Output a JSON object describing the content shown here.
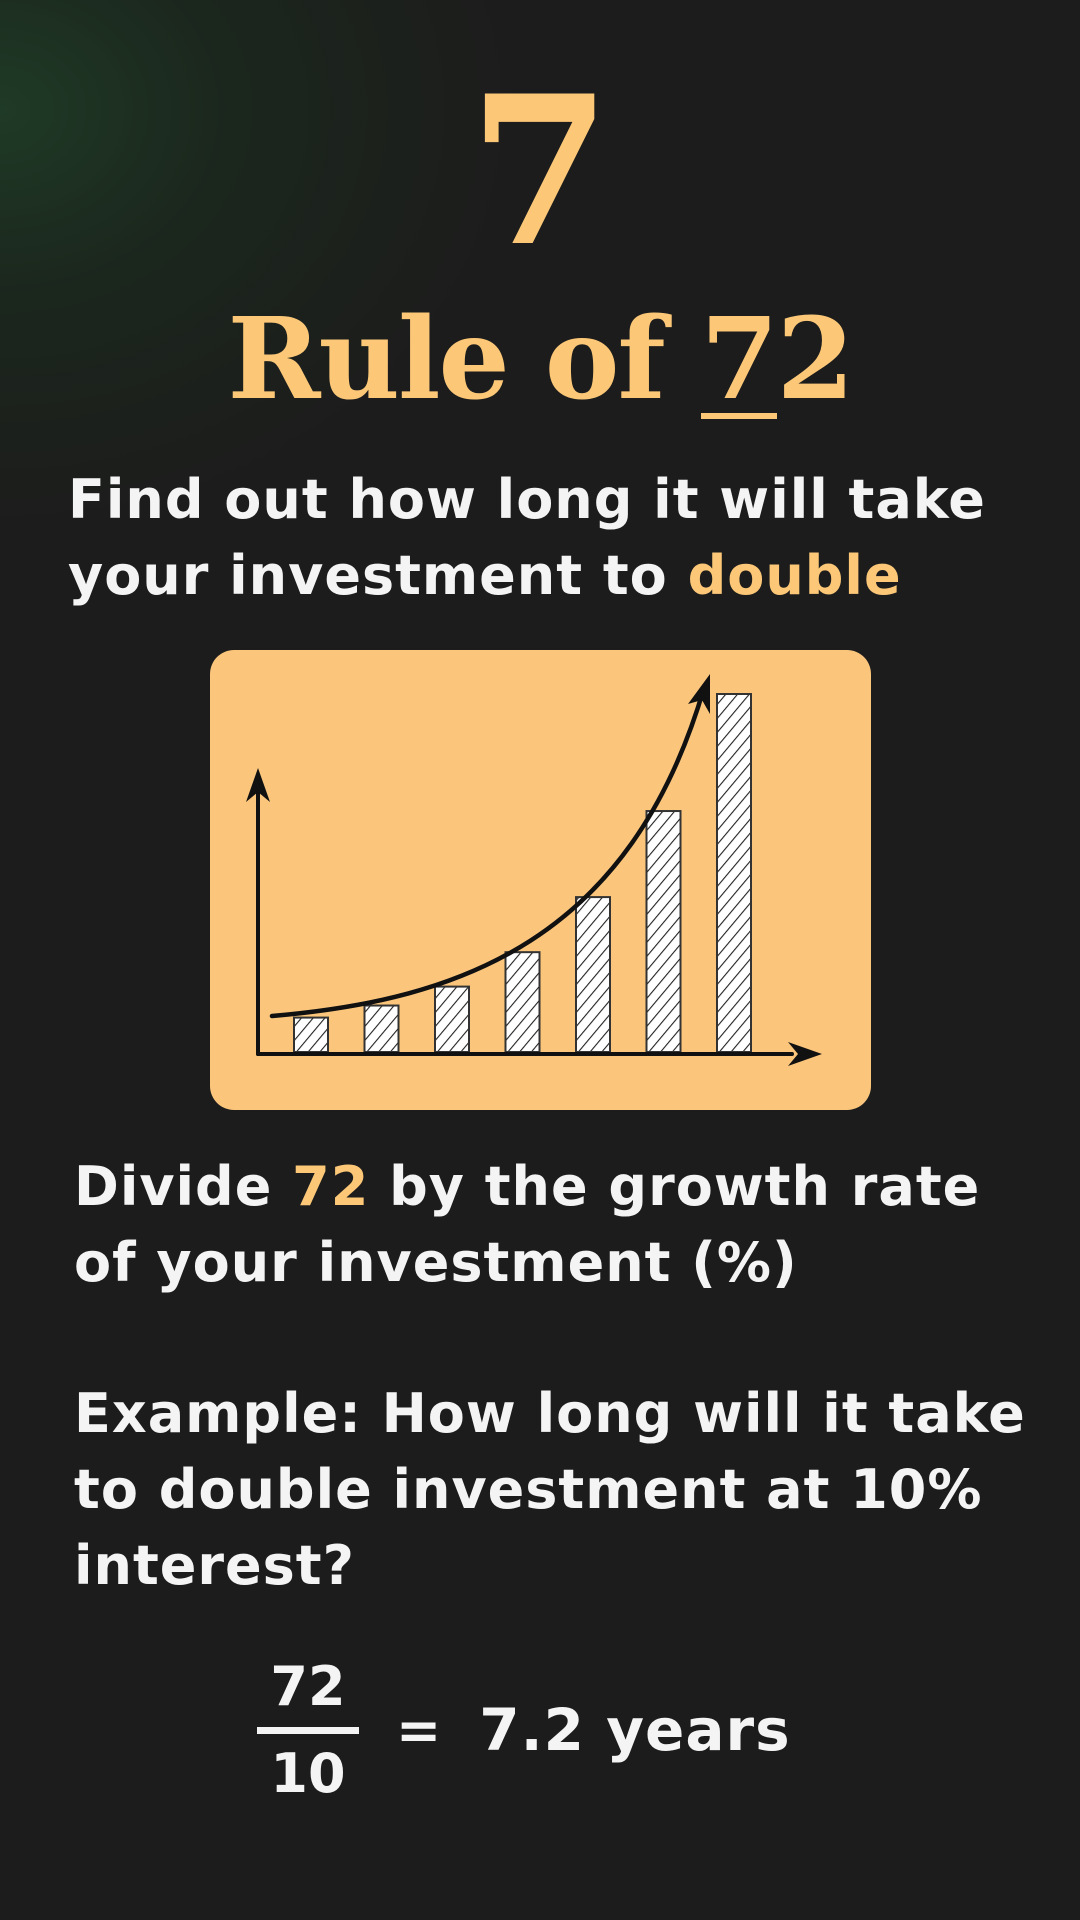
{
  "header": {
    "number": "7",
    "title_prefix": "Rule of ",
    "title_underlined": "7",
    "title_suffix": "2"
  },
  "subtitle": {
    "text": "Find out how long it will take your investment to ",
    "highlight": "double"
  },
  "illustration": {
    "card_color": "#fbc67c",
    "bar_growth_levels": [
      1,
      1.35,
      1.9,
      2.9,
      4.5,
      7,
      10.4
    ]
  },
  "instruction": {
    "before": "Divide ",
    "highlight": "72",
    "after": " by the growth rate of your investment (%)"
  },
  "example": {
    "text": "Example: How long will it take to double investment at 10% interest?"
  },
  "formula": {
    "numerator": "72",
    "denominator": "10",
    "equals": "=",
    "result": "7.2 years"
  },
  "colors": {
    "accent": "#fcc878",
    "text": "#f4f4f4",
    "background": "#1c1c1c"
  }
}
